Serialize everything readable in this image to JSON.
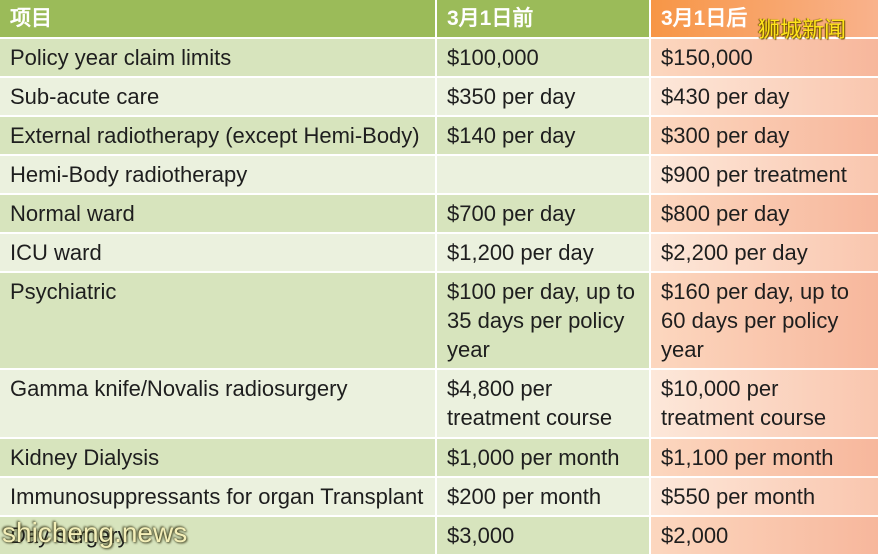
{
  "header": {
    "item": "项目",
    "before": "3月1日前",
    "after": "3月1日后"
  },
  "rows": [
    {
      "item": "Policy year claim limits",
      "before": "$100,000",
      "after": "$150,000"
    },
    {
      "item": "Sub-acute care",
      "before": "$350 per day",
      "after": "$430 per day"
    },
    {
      "item": "External radiotherapy (except Hemi-Body)",
      "before": "$140 per day",
      "after": "$300 per day"
    },
    {
      "item": "Hemi-Body radiotherapy",
      "before": "",
      "after": "$900 per treatment"
    },
    {
      "item": "Normal ward",
      "before": "$700 per day",
      "after": "$800 per day"
    },
    {
      "item": "ICU ward",
      "before": "$1,200 per day",
      "after": "$2,200 per day"
    },
    {
      "item": "Psychiatric",
      "before": "$100 per day, up to\n35 days per policy\nyear",
      "after": "$160 per day, up to\n60 days per policy\nyear"
    },
    {
      "item": "Gamma knife/Novalis radiosurgery",
      "before": "$4,800 per\ntreatment course",
      "after": "$10,000 per\ntreatment course"
    },
    {
      "item": "Kidney Dialysis",
      "before": "$1,000 per month",
      "after": "$1,100 per month"
    },
    {
      "item": "Immunosuppressants for organ Transplant",
      "before": "$200 per month",
      "after": "$550 per month"
    },
    {
      "item": "Day surgery",
      "before": "$3,000",
      "after": "$2,000"
    }
  ],
  "watermarks": {
    "top": "狮城新闻",
    "bottom": "shicheng.news"
  },
  "colors": {
    "header_green": "#9bbb59",
    "header_orange": "#f79646",
    "header_orange_light": "#f9b28c",
    "band_dark": "#d7e4bd",
    "band_light": "#ebf1de",
    "peach_odd_left": "#fcd7bf",
    "peach_odd_right": "#f7b79c",
    "peach_even_left": "#fde8da",
    "peach_even_right": "#f9c6ae",
    "watermark_top": "#ffe31a",
    "watermark_bottom": "#f4efb8"
  }
}
